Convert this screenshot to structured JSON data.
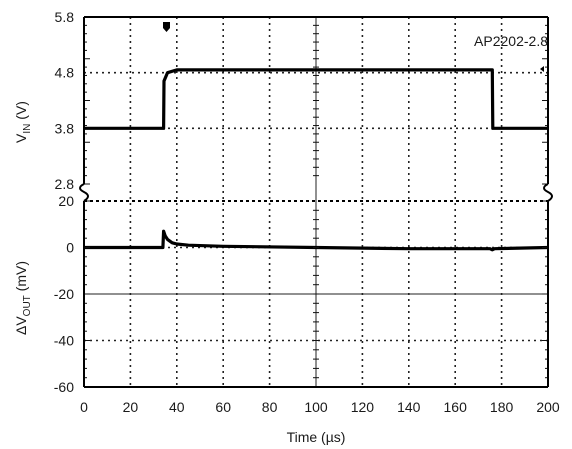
{
  "chart_data": {
    "type": "line",
    "x": [
      0,
      34.3,
      34.5,
      36,
      40,
      60,
      80,
      100,
      120,
      140,
      160,
      176,
      176.2,
      200
    ],
    "xlabel": "Time (µs)",
    "xlim": [
      0,
      200
    ],
    "x_ticks": [
      "0",
      "20",
      "40",
      "60",
      "80",
      "100",
      "120",
      "140",
      "160",
      "180",
      "200"
    ],
    "grid": true,
    "annotation": "AP2202-2.8",
    "panels": [
      {
        "id": "vin",
        "ylabel": {
          "base": "V",
          "sub": "IN",
          "unit": " (V)"
        },
        "ylim": [
          2.8,
          5.8
        ],
        "y_ticks": [
          "5.8",
          "4.8",
          "3.8",
          "2.8"
        ],
        "series": [
          {
            "x": [
              0,
              34.3,
              34.5,
              36,
              40,
              100,
              176,
              176.2,
              200
            ],
            "values": [
              3.8,
              3.8,
              4.65,
              4.8,
              4.85,
              4.85,
              4.85,
              3.8,
              3.8
            ]
          }
        ]
      },
      {
        "id": "dvout",
        "ylabel": {
          "base": "ΔV",
          "sub": "OUT",
          "unit": " (mV)"
        },
        "ylim": [
          -60,
          20
        ],
        "y_ticks": [
          "20",
          "0",
          "-20",
          "-40",
          "-60"
        ],
        "series": [
          {
            "x": [
              0,
              34,
              34.3,
              35,
              36,
              38,
              40,
              45,
              60,
              100,
              140,
              175,
              176,
              177,
              200
            ],
            "values": [
              0,
              0,
              7,
              5,
              3.5,
              2,
              1.5,
              1,
              0.5,
              0,
              -0.5,
              -0.5,
              -1,
              -0.5,
              0
            ]
          }
        ]
      }
    ]
  }
}
